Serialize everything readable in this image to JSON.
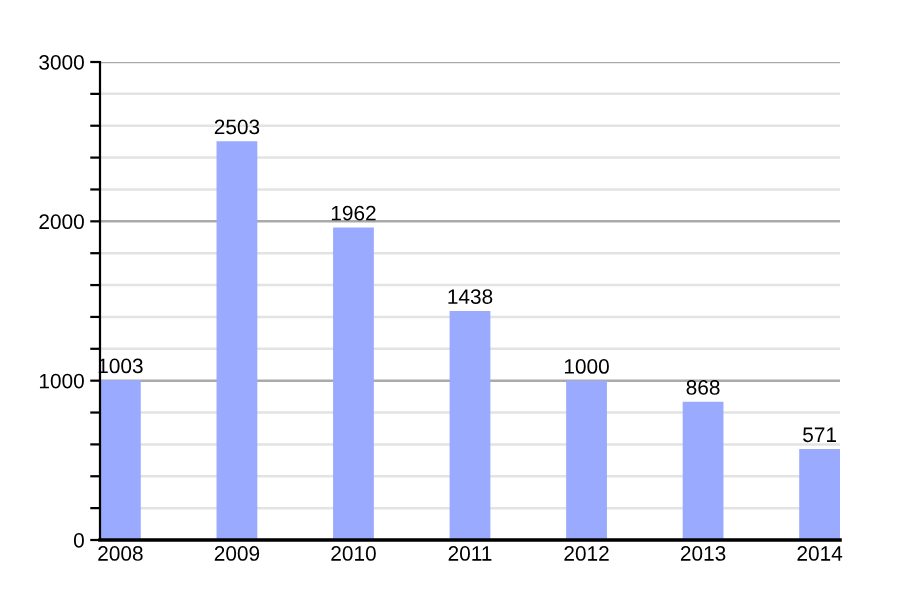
{
  "chart_data": {
    "type": "bar",
    "categories": [
      "2008",
      "2009",
      "2010",
      "2011",
      "2012",
      "2013",
      "2014"
    ],
    "values": [
      1003,
      2503,
      1962,
      1438,
      1000,
      868,
      571
    ],
    "color": "#99aaff",
    "ylim": [
      0,
      3000
    ],
    "yticks": [
      0,
      {
        "value": 200,
        "label": null
      },
      {
        "value": 400,
        "label": null
      },
      {
        "value": 600,
        "label": null
      },
      {
        "value": 800,
        "label": null
      },
      1000,
      {
        "value": 1200,
        "label": null
      },
      {
        "value": 1400,
        "label": null
      },
      {
        "value": 1600,
        "label": null
      },
      {
        "value": 1800,
        "label": null
      },
      2000,
      {
        "value": 2200,
        "label": null
      },
      {
        "value": 2400,
        "label": null
      },
      {
        "value": 2600,
        "label": null
      },
      {
        "value": 2800,
        "label": null
      },
      3000
    ],
    "grid": "y",
    "data_labels": true
  }
}
